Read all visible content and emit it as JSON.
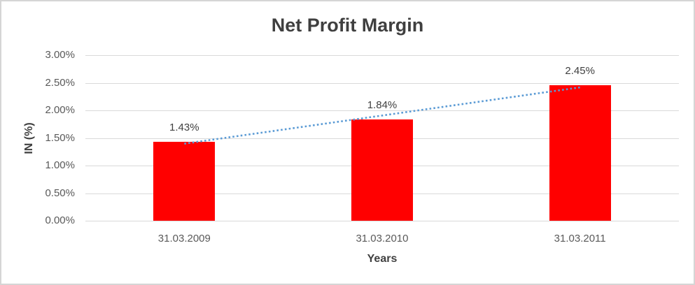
{
  "chart_data": {
    "type": "bar",
    "title": "Net Profit Margin",
    "xlabel": "Years",
    "ylabel": "IN (%)",
    "categories": [
      "31.03.2009",
      "31.03.2010",
      "31.03.2011"
    ],
    "values": [
      1.43,
      1.84,
      2.45
    ],
    "value_labels": [
      "1.43%",
      "1.84%",
      "2.45%"
    ],
    "y_ticks": {
      "values": [
        0,
        0.5,
        1.0,
        1.5,
        2.0,
        2.5,
        3.0
      ],
      "labels": [
        "0.00%",
        "0.50%",
        "1.00%",
        "1.50%",
        "2.00%",
        "2.50%",
        "3.00%"
      ]
    },
    "ylim": [
      0,
      3
    ],
    "grid": true,
    "legend": false,
    "bar_color": "#ff0000",
    "trendline": {
      "type": "linear",
      "style": "dotted",
      "color": "#5b9bd5"
    },
    "gridline_color": "#d9d9d9",
    "background_color": "#ffffff",
    "border_color": "#d5d5d5",
    "title_color": "#3f3f3f",
    "axis_text_color": "#595959",
    "label_text_color": "#404040"
  }
}
